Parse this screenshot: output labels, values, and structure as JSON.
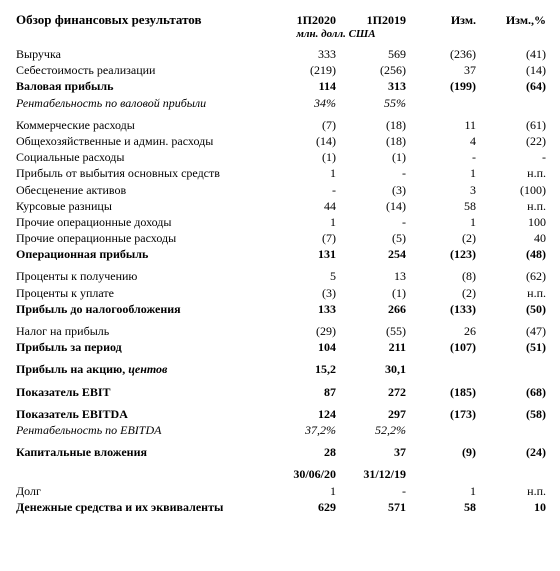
{
  "title": "Обзор финансовых результатов",
  "columns": [
    "1П2020",
    "1П2019",
    "Изм.",
    "Изм.,%"
  ],
  "units": "млн. долл. США",
  "rows": [
    {
      "type": "row",
      "label": "Выручка",
      "v": [
        "333",
        "569",
        "(236)",
        "(41)"
      ]
    },
    {
      "type": "row",
      "label": "Себестоимость реализации",
      "v": [
        "(219)",
        "(256)",
        "37",
        "(14)"
      ]
    },
    {
      "type": "bold",
      "label": "Валовая прибыль",
      "v": [
        "114",
        "313",
        "(199)",
        "(64)"
      ]
    },
    {
      "type": "italic",
      "label": "Рентабельность по валовой прибыли",
      "v": [
        "34%",
        "55%",
        "",
        ""
      ]
    },
    {
      "type": "spacer"
    },
    {
      "type": "row",
      "label": "Коммерческие расходы",
      "v": [
        "(7)",
        "(18)",
        "11",
        "(61)"
      ]
    },
    {
      "type": "row",
      "label": "Общехозяйственные и админ. расходы",
      "v": [
        "(14)",
        "(18)",
        "4",
        "(22)"
      ]
    },
    {
      "type": "row",
      "label": "Социальные расходы",
      "v": [
        "(1)",
        "(1)",
        "-",
        "-"
      ]
    },
    {
      "type": "row",
      "label": "Прибыль от выбытия основных средств",
      "v": [
        "1",
        "-",
        "1",
        "н.п."
      ]
    },
    {
      "type": "row",
      "label": "Обесценение активов",
      "v": [
        "-",
        "(3)",
        "3",
        "(100)"
      ]
    },
    {
      "type": "row",
      "label": "Курсовые разницы",
      "v": [
        "44",
        "(14)",
        "58",
        "н.п."
      ]
    },
    {
      "type": "row",
      "label": "Прочие операционные доходы",
      "v": [
        "1",
        "-",
        "1",
        "100"
      ]
    },
    {
      "type": "row",
      "label": "Прочие операционные расходы",
      "v": [
        "(7)",
        "(5)",
        "(2)",
        "40"
      ]
    },
    {
      "type": "bold",
      "label": "Операционная прибыль",
      "v": [
        "131",
        "254",
        "(123)",
        "(48)"
      ]
    },
    {
      "type": "spacer"
    },
    {
      "type": "row",
      "label": "Проценты к получению",
      "v": [
        "5",
        "13",
        "(8)",
        "(62)"
      ]
    },
    {
      "type": "row",
      "label": "Проценты к уплате",
      "v": [
        "(3)",
        "(1)",
        "(2)",
        "н.п."
      ]
    },
    {
      "type": "bold",
      "label": "Прибыль до налогообложения",
      "v": [
        "133",
        "266",
        "(133)",
        "(50)"
      ]
    },
    {
      "type": "spacer"
    },
    {
      "type": "row",
      "label": "Налог на прибыль",
      "v": [
        "(29)",
        "(55)",
        "26",
        "(47)"
      ]
    },
    {
      "type": "bold",
      "label": "Прибыль за период",
      "v": [
        "104",
        "211",
        "(107)",
        "(51)"
      ]
    },
    {
      "type": "spacer"
    },
    {
      "type": "bold",
      "label": "Прибыль на акцию, <i>центов</i>",
      "v": [
        "15,2",
        "30,1",
        "",
        ""
      ],
      "html": true
    },
    {
      "type": "spacer"
    },
    {
      "type": "bold",
      "label": "Показатель EBIT",
      "v": [
        "87",
        "272",
        "(185)",
        "(68)"
      ]
    },
    {
      "type": "spacer"
    },
    {
      "type": "bold",
      "label": "Показатель EBITDA",
      "v": [
        "124",
        "297",
        "(173)",
        "(58)"
      ]
    },
    {
      "type": "italic",
      "label": "Рентабельность по EBITDA",
      "v": [
        "37,2%",
        "52,2%",
        "",
        ""
      ]
    },
    {
      "type": "spacer"
    },
    {
      "type": "bold",
      "label": "Капитальные вложения",
      "v": [
        "28",
        "37",
        "(9)",
        "(24)"
      ]
    },
    {
      "type": "spacer"
    },
    {
      "type": "hdr2",
      "label": "",
      "v": [
        "30/06/20",
        "31/12/19",
        "",
        ""
      ]
    },
    {
      "type": "row",
      "label": "Долг",
      "v": [
        "1",
        "-",
        "1",
        "н.п."
      ]
    },
    {
      "type": "bold",
      "label": "Денежные средства и их эквиваленты",
      "v": [
        "629",
        "571",
        "58",
        "10"
      ]
    }
  ]
}
